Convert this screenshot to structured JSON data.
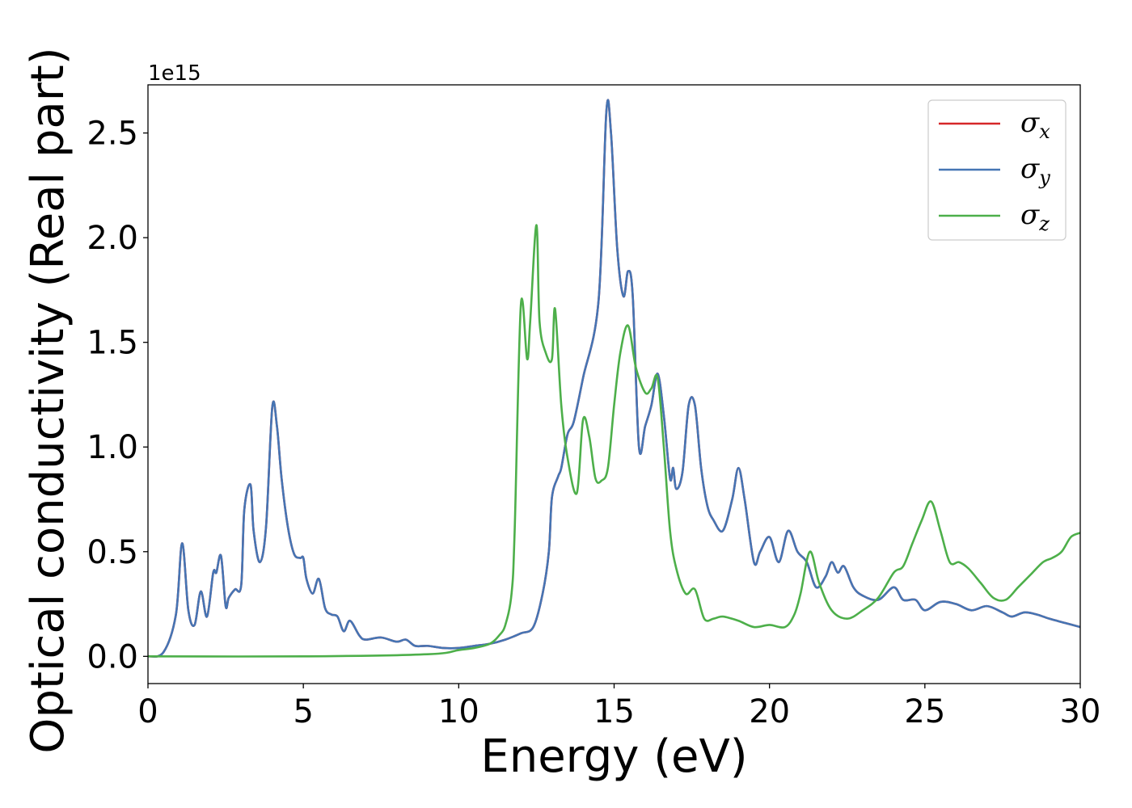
{
  "chart_data": {
    "type": "line",
    "xlabel": "Energy (eV)",
    "ylabel": "Optical conductivity (Real part)",
    "y_offset_label": "1e15",
    "xlim": [
      0,
      30
    ],
    "ylim": [
      -0.13,
      2.73
    ],
    "x_ticks": [
      0,
      5,
      10,
      15,
      20,
      25,
      30
    ],
    "x_tick_labels": [
      "0",
      "5",
      "10",
      "15",
      "20",
      "25",
      "30"
    ],
    "y_ticks": [
      0.0,
      0.5,
      1.0,
      1.5,
      2.0,
      2.5
    ],
    "y_tick_labels": [
      "0.0",
      "0.5",
      "1.0",
      "1.5",
      "2.0",
      "2.5"
    ],
    "grid": false,
    "legend_position": "top-right",
    "series": [
      {
        "name": "σx",
        "legend_main": "σ",
        "legend_sub": "x",
        "color": "#d62728",
        "x": [
          0,
          0.5,
          0.9,
          1.1,
          1.3,
          1.5,
          1.7,
          1.9,
          2.1,
          2.2,
          2.35,
          2.5,
          2.6,
          2.8,
          3.0,
          3.1,
          3.3,
          3.4,
          3.6,
          3.8,
          4.0,
          4.15,
          4.3,
          4.5,
          4.7,
          4.9,
          5.0,
          5.1,
          5.3,
          5.5,
          5.7,
          5.9,
          6.1,
          6.3,
          6.5,
          6.8,
          7.0,
          7.5,
          8.0,
          8.3,
          8.6,
          9.0,
          9.5,
          10.0,
          10.5,
          11.0,
          11.5,
          12.0,
          12.4,
          12.7,
          12.9,
          13.0,
          13.2,
          13.3,
          13.5,
          13.7,
          14.0,
          14.5,
          14.75,
          14.9,
          15.1,
          15.3,
          15.45,
          15.6,
          15.8,
          16.0,
          16.2,
          16.4,
          16.6,
          16.8,
          16.9,
          17.0,
          17.2,
          17.4,
          17.6,
          17.8,
          18.0,
          18.2,
          18.5,
          18.8,
          19.0,
          19.2,
          19.5,
          19.7,
          20.0,
          20.3,
          20.6,
          20.9,
          21.2,
          21.5,
          21.8,
          22.0,
          22.2,
          22.4,
          22.7,
          23.0,
          23.5,
          24.0,
          24.3,
          24.7,
          25.0,
          25.5,
          26.0,
          26.5,
          27.0,
          27.5,
          27.8,
          28.2,
          28.6,
          29.0,
          29.5,
          30.0
        ],
        "values": [
          0,
          0.02,
          0.2,
          0.54,
          0.22,
          0.15,
          0.31,
          0.19,
          0.4,
          0.4,
          0.48,
          0.24,
          0.28,
          0.32,
          0.34,
          0.7,
          0.82,
          0.6,
          0.45,
          0.62,
          1.19,
          1.1,
          0.85,
          0.62,
          0.49,
          0.47,
          0.47,
          0.37,
          0.3,
          0.37,
          0.23,
          0.2,
          0.19,
          0.12,
          0.17,
          0.1,
          0.08,
          0.09,
          0.07,
          0.08,
          0.05,
          0.05,
          0.04,
          0.04,
          0.05,
          0.06,
          0.08,
          0.11,
          0.14,
          0.3,
          0.5,
          0.76,
          0.86,
          0.9,
          1.06,
          1.12,
          1.33,
          1.7,
          2.6,
          2.5,
          1.95,
          1.72,
          1.84,
          1.72,
          1.0,
          1.1,
          1.2,
          1.35,
          1.15,
          0.85,
          0.9,
          0.8,
          0.88,
          1.2,
          1.2,
          0.9,
          0.72,
          0.65,
          0.6,
          0.75,
          0.9,
          0.75,
          0.45,
          0.5,
          0.57,
          0.45,
          0.6,
          0.5,
          0.45,
          0.33,
          0.38,
          0.45,
          0.4,
          0.43,
          0.33,
          0.29,
          0.27,
          0.33,
          0.27,
          0.27,
          0.22,
          0.26,
          0.25,
          0.22,
          0.24,
          0.21,
          0.19,
          0.21,
          0.2,
          0.18,
          0.16,
          0.14
        ]
      },
      {
        "name": "σy",
        "legend_main": "σ",
        "legend_sub": "y",
        "color": "#4575b4",
        "x": [
          0,
          0.5,
          0.9,
          1.1,
          1.3,
          1.5,
          1.7,
          1.9,
          2.1,
          2.2,
          2.35,
          2.5,
          2.6,
          2.8,
          3.0,
          3.1,
          3.3,
          3.4,
          3.6,
          3.8,
          4.0,
          4.15,
          4.3,
          4.5,
          4.7,
          4.9,
          5.0,
          5.1,
          5.3,
          5.5,
          5.7,
          5.9,
          6.1,
          6.3,
          6.5,
          6.8,
          7.0,
          7.5,
          8.0,
          8.3,
          8.6,
          9.0,
          9.5,
          10.0,
          10.5,
          11.0,
          11.5,
          12.0,
          12.4,
          12.7,
          12.9,
          13.0,
          13.2,
          13.3,
          13.5,
          13.7,
          14.0,
          14.5,
          14.75,
          14.9,
          15.1,
          15.3,
          15.45,
          15.6,
          15.8,
          16.0,
          16.2,
          16.4,
          16.6,
          16.8,
          16.9,
          17.0,
          17.2,
          17.4,
          17.6,
          17.8,
          18.0,
          18.2,
          18.5,
          18.8,
          19.0,
          19.2,
          19.5,
          19.7,
          20.0,
          20.3,
          20.6,
          20.9,
          21.2,
          21.5,
          21.8,
          22.0,
          22.2,
          22.4,
          22.7,
          23.0,
          23.5,
          24.0,
          24.3,
          24.7,
          25.0,
          25.5,
          26.0,
          26.5,
          27.0,
          27.5,
          27.8,
          28.2,
          28.6,
          29.0,
          29.5,
          30.0
        ],
        "values": [
          0,
          0.02,
          0.2,
          0.54,
          0.22,
          0.15,
          0.31,
          0.19,
          0.4,
          0.4,
          0.48,
          0.24,
          0.28,
          0.32,
          0.34,
          0.7,
          0.82,
          0.6,
          0.45,
          0.62,
          1.19,
          1.1,
          0.85,
          0.62,
          0.49,
          0.47,
          0.47,
          0.37,
          0.3,
          0.37,
          0.23,
          0.2,
          0.19,
          0.12,
          0.17,
          0.1,
          0.08,
          0.09,
          0.07,
          0.08,
          0.05,
          0.05,
          0.04,
          0.04,
          0.05,
          0.06,
          0.08,
          0.11,
          0.14,
          0.3,
          0.5,
          0.76,
          0.86,
          0.9,
          1.06,
          1.12,
          1.33,
          1.7,
          2.6,
          2.5,
          1.95,
          1.72,
          1.84,
          1.72,
          1.0,
          1.1,
          1.2,
          1.35,
          1.15,
          0.85,
          0.9,
          0.8,
          0.88,
          1.2,
          1.2,
          0.9,
          0.72,
          0.65,
          0.6,
          0.75,
          0.9,
          0.75,
          0.45,
          0.5,
          0.57,
          0.45,
          0.6,
          0.5,
          0.45,
          0.33,
          0.38,
          0.45,
          0.4,
          0.43,
          0.33,
          0.29,
          0.27,
          0.33,
          0.27,
          0.27,
          0.22,
          0.26,
          0.25,
          0.22,
          0.24,
          0.21,
          0.19,
          0.21,
          0.2,
          0.18,
          0.16,
          0.14
        ]
      },
      {
        "name": "σz",
        "legend_main": "σ",
        "legend_sub": "z",
        "color": "#4daf4a",
        "x": [
          0,
          5,
          9,
          10,
          10.5,
          11.0,
          11.3,
          11.5,
          11.7,
          11.8,
          12.0,
          12.2,
          12.3,
          12.5,
          12.6,
          12.8,
          13.0,
          13.1,
          13.3,
          13.5,
          13.8,
          14.0,
          14.2,
          14.4,
          14.6,
          14.8,
          15.0,
          15.2,
          15.45,
          15.7,
          16.0,
          16.2,
          16.4,
          16.6,
          16.8,
          17.0,
          17.3,
          17.6,
          17.9,
          18.2,
          18.5,
          19.0,
          19.5,
          20.0,
          20.5,
          20.8,
          21.0,
          21.3,
          21.6,
          22.0,
          22.5,
          23.0,
          23.5,
          24.0,
          24.3,
          24.6,
          24.9,
          25.2,
          25.5,
          25.8,
          26.1,
          26.4,
          26.8,
          27.2,
          27.6,
          28.0,
          28.4,
          28.8,
          29.1,
          29.4,
          29.7,
          30.0
        ],
        "values": [
          0,
          0,
          0.01,
          0.03,
          0.04,
          0.06,
          0.1,
          0.15,
          0.3,
          0.6,
          1.68,
          1.42,
          1.6,
          2.06,
          1.6,
          1.45,
          1.42,
          1.66,
          1.2,
          0.95,
          0.78,
          1.13,
          1.05,
          0.85,
          0.84,
          0.9,
          1.2,
          1.45,
          1.58,
          1.38,
          1.26,
          1.28,
          1.33,
          1.0,
          0.6,
          0.42,
          0.3,
          0.32,
          0.18,
          0.18,
          0.19,
          0.17,
          0.14,
          0.15,
          0.14,
          0.2,
          0.3,
          0.5,
          0.35,
          0.22,
          0.18,
          0.22,
          0.28,
          0.4,
          0.43,
          0.54,
          0.65,
          0.74,
          0.6,
          0.45,
          0.45,
          0.42,
          0.35,
          0.28,
          0.27,
          0.33,
          0.39,
          0.45,
          0.47,
          0.5,
          0.57,
          0.59
        ]
      }
    ]
  }
}
